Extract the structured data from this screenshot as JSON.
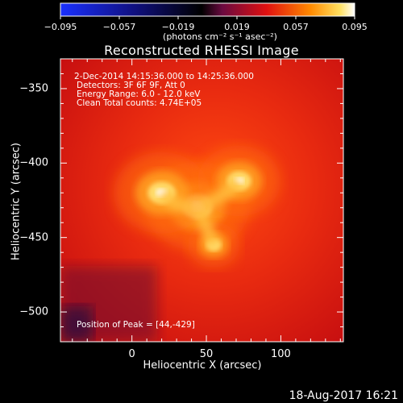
{
  "colorbar": {
    "ticks": [
      "−0.095",
      "−0.057",
      "−0.019",
      "0.019",
      "0.057",
      "0.095"
    ],
    "tick_values": [
      -0.095,
      -0.057,
      -0.019,
      0.019,
      0.057,
      0.095
    ],
    "unit_label": "(photons cm⁻² s⁻¹ asec⁻²)"
  },
  "chart_data": {
    "type": "heatmap",
    "title": "Reconstructed RHESSI Image",
    "xlabel": "Heliocentric X (arcsec)",
    "ylabel": "Heliocentric Y (arcsec)",
    "xlim": [
      -48,
      142
    ],
    "ylim": [
      -520,
      -330
    ],
    "x_ticks": [
      0,
      50,
      100
    ],
    "y_ticks": [
      -350,
      -400,
      -450,
      -500
    ],
    "value_range": [
      -0.095,
      0.095
    ],
    "colormap": "hot (blue-black-red-yellow-white)",
    "peak": [
      44,
      -429
    ],
    "sources": [
      {
        "x": 44,
        "y": -429,
        "strength": 1.0
      },
      {
        "x": 20,
        "y": -420,
        "strength": 0.9
      },
      {
        "x": 72,
        "y": -412,
        "strength": 0.75
      },
      {
        "x": 55,
        "y": -455,
        "strength": 0.4
      }
    ],
    "annotations": [
      " 2-Dec-2014 14:15:36.000 to 14:25:36.000",
      "Detectors: 3F 6F 9F, Att 0",
      "Energy Range: 6.0 - 12.0 keV",
      "Clean    Total counts: 4.74E+05",
      "Position of Peak = [44,-429]"
    ]
  },
  "timestamp": "18-Aug-2017 16:21"
}
